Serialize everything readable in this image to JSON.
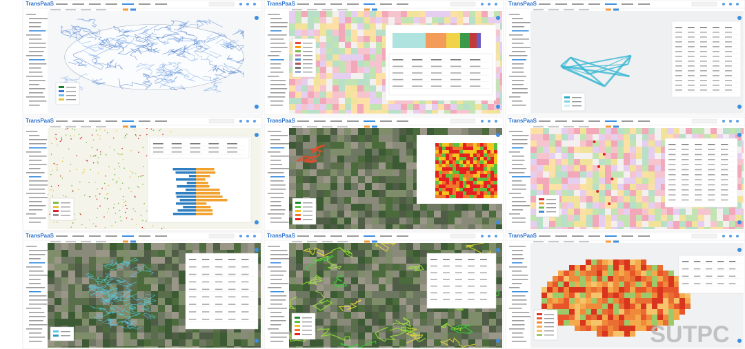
{
  "panels": [
    {
      "logo": "TransPaaS"
    },
    {
      "logo": "TransPaaS"
    },
    {
      "logo": "TransPaaS"
    },
    {
      "logo": "TransPaaS"
    },
    {
      "logo": "TransPaaS"
    },
    {
      "logo": "TransPaaS"
    },
    {
      "logo": "TransPaaS"
    },
    {
      "logo": "TransPaaS"
    },
    {
      "logo": "TransPaaS"
    }
  ],
  "watermark": "SUTPC"
}
